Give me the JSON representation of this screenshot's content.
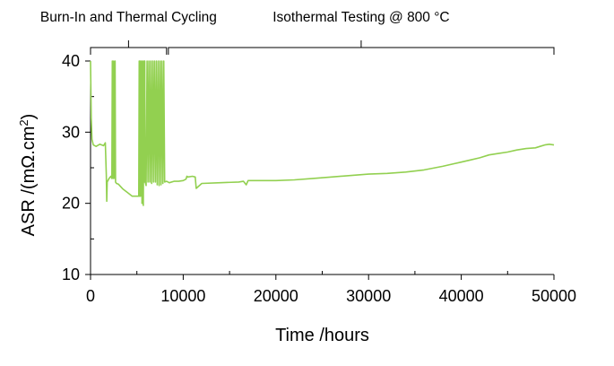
{
  "chart_data": {
    "type": "line",
    "title": "",
    "xlabel": "Time /hours",
    "ylabel_main": "ASR /(mΩ.cm",
    "ylabel_sup": "2",
    "ylabel_close": ")",
    "xlim": [
      0,
      50000
    ],
    "ylim": [
      10,
      40
    ],
    "x_ticks": [
      0,
      10000,
      20000,
      30000,
      40000,
      50000
    ],
    "x_tick_labels": [
      "0",
      "10000",
      "20000",
      "30000",
      "40000",
      "50000"
    ],
    "y_ticks": [
      10,
      20,
      30,
      40
    ],
    "y_tick_labels": [
      "10",
      "20",
      "30",
      "40"
    ],
    "grid": false,
    "line_color": "#92d050",
    "annotations": [
      {
        "text": "Burn-In and Thermal Cycling",
        "x_start": 0,
        "x_end": 8200
      },
      {
        "text": "Isothermal Testing @ 800 °C",
        "x_start": 8400,
        "x_end": 50000
      }
    ],
    "series": [
      {
        "x": [
          0,
          80,
          150,
          300,
          600,
          1000,
          1400,
          1600,
          1700,
          1750,
          1800,
          2000,
          2200,
          2300,
          2350,
          2400,
          2450,
          2500,
          2600,
          2650,
          2700,
          2800,
          3000,
          3500,
          4000,
          4500,
          5000,
          5200,
          5250,
          5300,
          5350,
          5400,
          5500,
          5550,
          5600,
          5650,
          5700,
          5750,
          5800,
          5850,
          5900,
          6000,
          6100,
          6200,
          6300,
          6400,
          6500,
          6600,
          6700,
          6800,
          6900,
          7000,
          7100,
          7200,
          7300,
          7400,
          7500,
          7600,
          7700,
          7800,
          7900,
          8000,
          8200,
          8500,
          9000,
          9500,
          10000,
          10300,
          10400,
          10500,
          11000,
          11300,
          11400,
          12000,
          14000,
          16000,
          16500,
          16800,
          17000,
          18000,
          20000,
          22000,
          24000,
          26000,
          28000,
          30000,
          32000,
          34000,
          36000,
          38000,
          40000,
          41000,
          42000,
          43000,
          44000,
          45000,
          46000,
          47000,
          48000,
          48500,
          49000,
          49500,
          50000
        ],
        "y": [
          40,
          32,
          29,
          28.2,
          28,
          28.3,
          28.1,
          28.5,
          24,
          20.3,
          23,
          23.5,
          23.8,
          23.5,
          40,
          23.6,
          23.5,
          40,
          23.5,
          40,
          23,
          22.8,
          22.7,
          22,
          21.5,
          21,
          21,
          21,
          40,
          21,
          40,
          21,
          40,
          20,
          40,
          21,
          19.7,
          40,
          23,
          40,
          23,
          22.5,
          40,
          23,
          40,
          23,
          40,
          22.8,
          40,
          23,
          40,
          23,
          40,
          22.6,
          40,
          22.5,
          40,
          22.6,
          40,
          22.8,
          40,
          23,
          23.1,
          22.9,
          23.1,
          23.1,
          23.2,
          23.4,
          23.8,
          23.7,
          23.8,
          23.7,
          22.1,
          22.8,
          22.9,
          23,
          23.1,
          22.6,
          23.2,
          23.2,
          23.2,
          23.3,
          23.5,
          23.7,
          23.9,
          24.1,
          24.2,
          24.4,
          24.7,
          25.2,
          25.8,
          26.1,
          26.4,
          26.8,
          27,
          27.2,
          27.5,
          27.7,
          27.8,
          28,
          28.2,
          28.3,
          28.2
        ]
      }
    ]
  }
}
